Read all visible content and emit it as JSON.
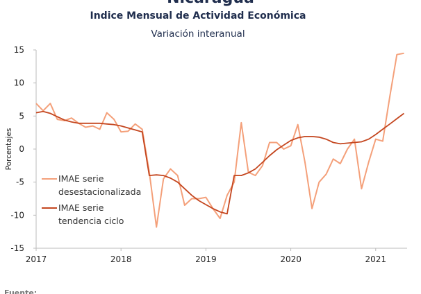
{
  "chart_data": {
    "type": "line",
    "title": "Nicaragua",
    "subtitle": "Indice Mensual de  Actividad Económica",
    "subtitle2": "Variación interanual",
    "y_label": "Porcentajes",
    "footer": "Fuente:",
    "x": [
      2017,
      2017.083,
      2017.167,
      2017.25,
      2017.333,
      2017.417,
      2017.5,
      2017.583,
      2017.667,
      2017.75,
      2017.833,
      2017.917,
      2018,
      2018.083,
      2018.167,
      2018.25,
      2018.333,
      2018.417,
      2018.5,
      2018.583,
      2018.667,
      2018.75,
      2018.833,
      2018.917,
      2019,
      2019.083,
      2019.167,
      2019.25,
      2019.333,
      2019.417,
      2019.5,
      2019.583,
      2019.667,
      2019.75,
      2019.833,
      2019.917,
      2020,
      2020.083,
      2020.167,
      2020.25,
      2020.333,
      2020.417,
      2020.5,
      2020.583,
      2020.667,
      2020.75,
      2020.833,
      2020.917,
      2021,
      2021.083,
      2021.167,
      2021.25,
      2021.333
    ],
    "series": [
      {
        "name": "IMAE serie desestacionalizada",
        "color": "#f4a07a",
        "values": [
          6.9,
          5.8,
          6.9,
          4.5,
          4.3,
          4.7,
          3.9,
          3.3,
          3.5,
          3.0,
          5.5,
          4.5,
          2.6,
          2.7,
          3.8,
          3.0,
          -3.5,
          -11.8,
          -4.5,
          -3.0,
          -4.0,
          -8.5,
          -7.5,
          -7.5,
          -7.3,
          -9.0,
          -10.5,
          -7.0,
          -5.0,
          4.0,
          -3.5,
          -4.0,
          -2.5,
          1.0,
          1.0,
          0.0,
          0.5,
          3.7,
          -2.0,
          -9.0,
          -5.0,
          -3.8,
          -1.5,
          -2.2,
          0.0,
          1.5,
          -6.0,
          -2.0,
          1.5,
          1.2,
          8.0,
          14.3,
          14.5
        ]
      },
      {
        "name": "IMAE serie tendencia ciclo",
        "color": "#c4461f",
        "values": [
          5.5,
          5.7,
          5.4,
          4.9,
          4.4,
          4.1,
          3.9,
          3.9,
          3.9,
          3.9,
          3.8,
          3.7,
          3.5,
          3.2,
          2.9,
          2.6,
          -4.0,
          -3.9,
          -4.0,
          -4.4,
          -5.0,
          -6.0,
          -7.0,
          -7.8,
          -8.4,
          -9.0,
          -9.5,
          -9.8,
          -4.0,
          -4.0,
          -3.6,
          -3.0,
          -2.0,
          -1.0,
          -0.1,
          0.6,
          1.3,
          1.7,
          1.9,
          1.9,
          1.8,
          1.5,
          1.0,
          0.8,
          0.9,
          1.0,
          1.1,
          1.5,
          2.2,
          3.0,
          3.8,
          4.6,
          5.4
        ]
      }
    ],
    "xlim": [
      2017,
      2021.37
    ],
    "xticks": [
      2017,
      2018,
      2019,
      2020,
      2021
    ],
    "ylim": [
      -15,
      15
    ],
    "yticks": [
      -15,
      -10,
      -5,
      0,
      5,
      10,
      15
    ],
    "legend": "lower left"
  }
}
